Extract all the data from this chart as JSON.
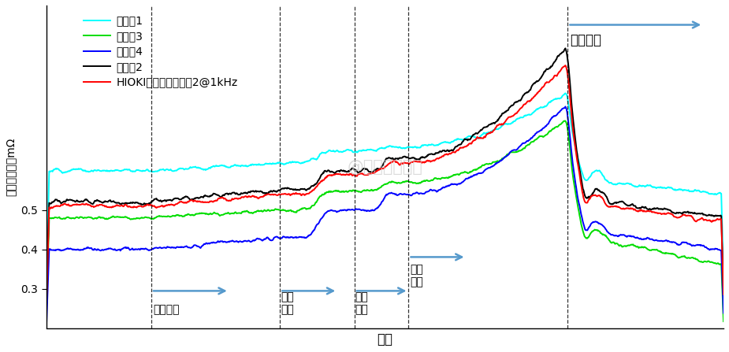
{
  "xlabel": "时间",
  "ylabel": "单片高频阻抗mΩ",
  "watermark": "@燃料电池乃货",
  "legend_entries": [
    {
      "label": "中间片1",
      "color": "#00FFFF"
    },
    {
      "label": "中间片3",
      "color": "#00DD00"
    },
    {
      "label": "端板片4",
      "color": "#0000FF"
    },
    {
      "label": "中间片2",
      "color": "#000000"
    },
    {
      "label": "HIOKI日置内阻仪测片2@1kHz",
      "color": "#FF0000"
    }
  ],
  "dashed_lines": [
    0.155,
    0.345,
    0.455,
    0.535,
    0.77
  ],
  "background_color": "#FFFFFF",
  "n_points": 1200,
  "arrow_color": "#5599CC",
  "annotation_fontsize": 10,
  "label_fontsize": 12
}
